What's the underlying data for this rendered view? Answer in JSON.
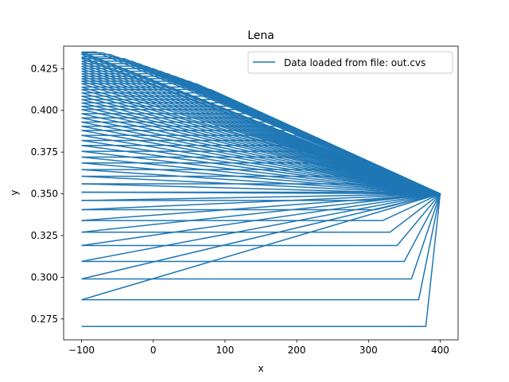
{
  "chart_data": {
    "type": "line",
    "title": "Lena",
    "xlabel": "x",
    "ylabel": "y",
    "xlim": [
      -125,
      425
    ],
    "ylim": [
      0.2625,
      0.4385
    ],
    "x_ticks": [
      -100,
      0,
      100,
      200,
      300,
      400
    ],
    "x_tick_labels": [
      "−100",
      "0",
      "100",
      "200",
      "300",
      "400"
    ],
    "y_ticks": [
      0.275,
      0.3,
      0.325,
      0.35,
      0.375,
      0.4,
      0.425
    ],
    "y_tick_labels": [
      "0.275",
      "0.300",
      "0.325",
      "0.350",
      "0.375",
      "0.400",
      "0.425"
    ],
    "grid": false,
    "legend_position": "upper right",
    "colors": {
      "series": "#1f77b4",
      "axes": "#000000",
      "background": "#ffffff"
    },
    "series": [
      {
        "name": "Data loaded from file: out.cvs",
        "paths": [
          {
            "x": [
              -100,
              380,
              400,
              -100
            ],
            "y": [
              0.2705,
              0.2705,
              0.35,
              0.2865
            ]
          },
          {
            "x": [
              -100,
              370,
              400,
              -100
            ],
            "y": [
              0.2865,
              0.2865,
              0.35,
              0.299
            ]
          },
          {
            "x": [
              -100,
              360,
              400,
              -100
            ],
            "y": [
              0.299,
              0.299,
              0.35,
              0.3095
            ]
          },
          {
            "x": [
              -100,
              350,
              400,
              -100
            ],
            "y": [
              0.3095,
              0.3095,
              0.35,
              0.319
            ]
          },
          {
            "x": [
              -100,
              340,
              400,
              -100
            ],
            "y": [
              0.319,
              0.319,
              0.35,
              0.327
            ]
          },
          {
            "x": [
              -100,
              330,
              400,
              -100
            ],
            "y": [
              0.327,
              0.327,
              0.35,
              0.334
            ]
          },
          {
            "x": [
              -100,
              320,
              400,
              -100
            ],
            "y": [
              0.334,
              0.334,
              0.35,
              0.3405
            ]
          },
          {
            "x": [
              -100,
              310,
              400,
              -100
            ],
            "y": [
              0.3405,
              0.3405,
              0.35,
              0.346
            ]
          },
          {
            "x": [
              -100,
              300,
              400,
              -100
            ],
            "y": [
              0.346,
              0.346,
              0.35,
              0.351
            ]
          },
          {
            "x": [
              -100,
              290,
              400,
              -100
            ],
            "y": [
              0.351,
              0.351,
              0.35,
              0.356
            ]
          },
          {
            "x": [
              -100,
              280,
              400,
              -100
            ],
            "y": [
              0.356,
              0.356,
              0.35,
              0.3605
            ]
          },
          {
            "x": [
              -100,
              270,
              400,
              -100
            ],
            "y": [
              0.3605,
              0.3605,
              0.35,
              0.3645
            ]
          },
          {
            "x": [
              -100,
              260,
              400,
              -100
            ],
            "y": [
              0.3645,
              0.3645,
              0.35,
              0.3685
            ]
          },
          {
            "x": [
              -100,
              250,
              400,
              -100
            ],
            "y": [
              0.3685,
              0.3685,
              0.35,
              0.372
            ]
          },
          {
            "x": [
              -100,
              240,
              400,
              -100
            ],
            "y": [
              0.372,
              0.372,
              0.35,
              0.3755
            ]
          },
          {
            "x": [
              -100,
              230,
              400,
              -100
            ],
            "y": [
              0.3755,
              0.3755,
              0.35,
              0.379
            ]
          },
          {
            "x": [
              -100,
              220,
              400,
              -100
            ],
            "y": [
              0.379,
              0.379,
              0.35,
              0.382
            ]
          },
          {
            "x": [
              -100,
              210,
              400,
              -100
            ],
            "y": [
              0.382,
              0.382,
              0.35,
              0.385
            ]
          },
          {
            "x": [
              -100,
              200,
              400,
              -100
            ],
            "y": [
              0.385,
              0.385,
              0.35,
              0.388
            ]
          },
          {
            "x": [
              -100,
              190,
              400,
              -100
            ],
            "y": [
              0.388,
              0.388,
              0.35,
              0.3905
            ]
          },
          {
            "x": [
              -100,
              180,
              400,
              -100
            ],
            "y": [
              0.3905,
              0.3905,
              0.35,
              0.393
            ]
          },
          {
            "x": [
              -100,
              170,
              400,
              -100
            ],
            "y": [
              0.393,
              0.393,
              0.35,
              0.3955
            ]
          },
          {
            "x": [
              -100,
              160,
              400,
              -100
            ],
            "y": [
              0.3955,
              0.3955,
              0.35,
              0.398
            ]
          },
          {
            "x": [
              -100,
              150,
              400,
              -100
            ],
            "y": [
              0.398,
              0.398,
              0.35,
              0.4005
            ]
          },
          {
            "x": [
              -100,
              140,
              400,
              -100
            ],
            "y": [
              0.4005,
              0.4005,
              0.35,
              0.4025
            ]
          },
          {
            "x": [
              -100,
              130,
              400,
              -100
            ],
            "y": [
              0.4025,
              0.4025,
              0.35,
              0.4045
            ]
          },
          {
            "x": [
              -100,
              120,
              400,
              -100
            ],
            "y": [
              0.4045,
              0.4045,
              0.35,
              0.4065
            ]
          },
          {
            "x": [
              -100,
              110,
              400,
              -100
            ],
            "y": [
              0.4065,
              0.4065,
              0.35,
              0.4085
            ]
          },
          {
            "x": [
              -100,
              100,
              400,
              -100
            ],
            "y": [
              0.4085,
              0.4085,
              0.35,
              0.4105
            ]
          },
          {
            "x": [
              -100,
              90,
              400,
              -100
            ],
            "y": [
              0.4105,
              0.4105,
              0.35,
              0.4125
            ]
          },
          {
            "x": [
              -100,
              80,
              400,
              -100
            ],
            "y": [
              0.4125,
              0.4125,
              0.35,
              0.414
            ]
          },
          {
            "x": [
              -100,
              70,
              400,
              -100
            ],
            "y": [
              0.414,
              0.414,
              0.35,
              0.416
            ]
          },
          {
            "x": [
              -100,
              60,
              400,
              -100
            ],
            "y": [
              0.416,
              0.416,
              0.35,
              0.4175
            ]
          },
          {
            "x": [
              -100,
              50,
              400,
              -100
            ],
            "y": [
              0.4175,
              0.4175,
              0.35,
              0.419
            ]
          },
          {
            "x": [
              -100,
              40,
              400,
              -100
            ],
            "y": [
              0.419,
              0.419,
              0.35,
              0.4205
            ]
          },
          {
            "x": [
              -100,
              30,
              400,
              -100
            ],
            "y": [
              0.4205,
              0.4205,
              0.35,
              0.422
            ]
          },
          {
            "x": [
              -100,
              20,
              400,
              -100
            ],
            "y": [
              0.422,
              0.422,
              0.35,
              0.4235
            ]
          },
          {
            "x": [
              -100,
              10,
              400,
              -100
            ],
            "y": [
              0.4235,
              0.4235,
              0.35,
              0.425
            ]
          },
          {
            "x": [
              -100,
              0,
              400,
              -100
            ],
            "y": [
              0.425,
              0.425,
              0.35,
              0.4265
            ]
          },
          {
            "x": [
              -100,
              -10,
              400,
              -100
            ],
            "y": [
              0.4265,
              0.4265,
              0.35,
              0.428
            ]
          },
          {
            "x": [
              -100,
              -20,
              400,
              -100
            ],
            "y": [
              0.428,
              0.428,
              0.35,
              0.4295
            ]
          },
          {
            "x": [
              -100,
              -30,
              400,
              -100
            ],
            "y": [
              0.4295,
              0.4295,
              0.35,
              0.431
            ]
          },
          {
            "x": [
              -100,
              -40,
              400,
              -100
            ],
            "y": [
              0.431,
              0.431,
              0.35,
              0.432
            ]
          },
          {
            "x": [
              -100,
              -50,
              400,
              -100
            ],
            "y": [
              0.432,
              0.432,
              0.35,
              0.4335
            ]
          },
          {
            "x": [
              -100,
              -60,
              400,
              -100
            ],
            "y": [
              0.4335,
              0.4335,
              0.35,
              0.4345
            ]
          },
          {
            "x": [
              -100,
              -70,
              400,
              -100
            ],
            "y": [
              0.4345,
              0.4345,
              0.35,
              0.435
            ]
          },
          {
            "x": [
              -100,
              -80,
              400
            ],
            "y": [
              0.435,
              0.435,
              0.35
            ]
          }
        ]
      }
    ]
  }
}
